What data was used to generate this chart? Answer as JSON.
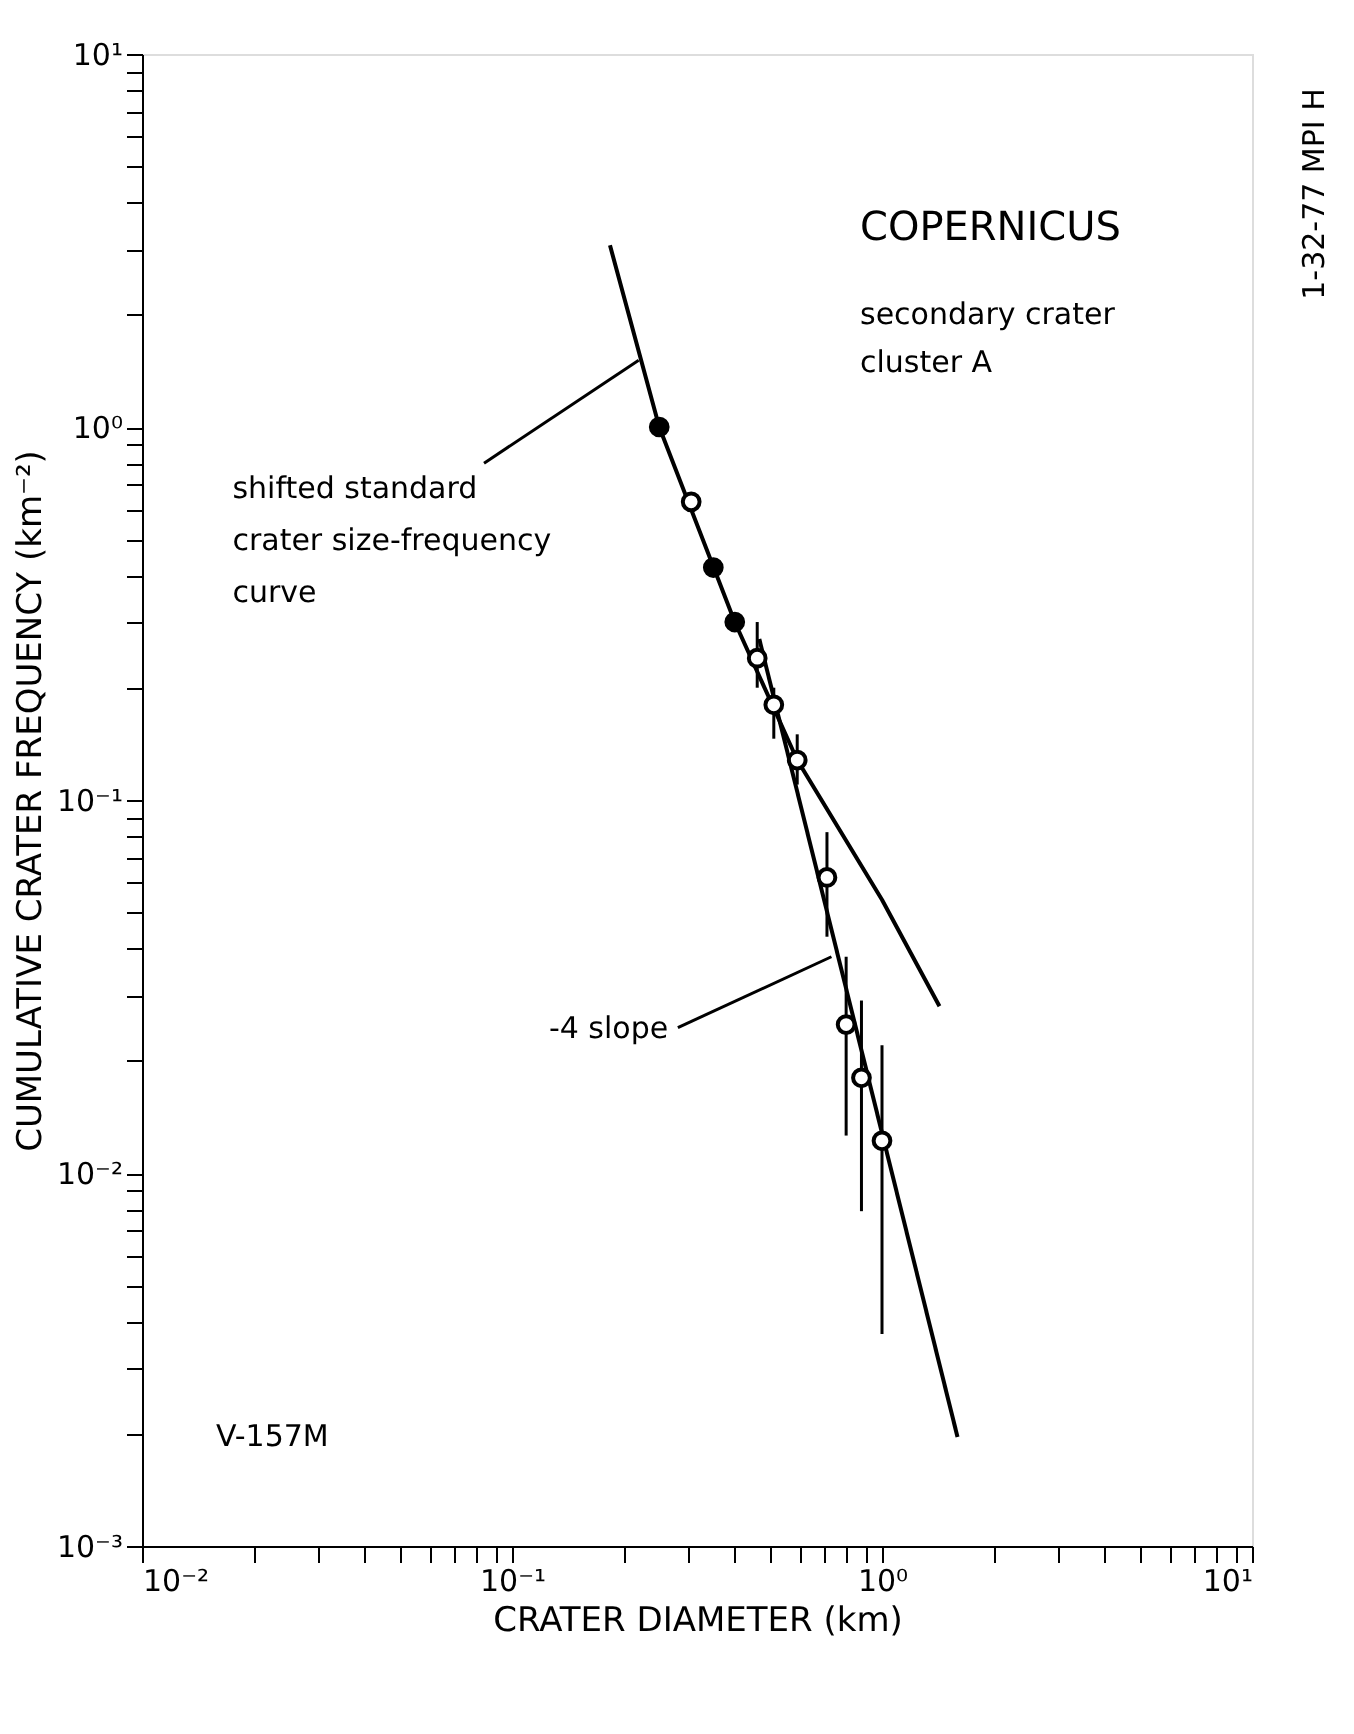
{
  "chart_data": {
    "type": "scatter",
    "xlabel": "CRATER DIAMETER (km)",
    "ylabel": "CUMULATIVE CRATER FREQUENCY (km⁻²)",
    "log": "xy",
    "xlim": [
      0.01,
      10
    ],
    "ylim": [
      0.001,
      10
    ],
    "xticks": [
      {
        "value": 0.01,
        "label": "10⁻²"
      },
      {
        "value": 0.02,
        "label": null
      },
      {
        "value": 0.03,
        "label": null
      },
      {
        "value": 0.04,
        "label": null
      },
      {
        "value": 0.05,
        "label": null
      },
      {
        "value": 0.06,
        "label": null
      },
      {
        "value": 0.07,
        "label": null
      },
      {
        "value": 0.08,
        "label": null
      },
      {
        "value": 0.09,
        "label": null
      },
      {
        "value": 0.1,
        "label": "10⁻¹"
      },
      {
        "value": 0.2,
        "label": null
      },
      {
        "value": 0.3,
        "label": null
      },
      {
        "value": 0.4,
        "label": null
      },
      {
        "value": 0.5,
        "label": null
      },
      {
        "value": 0.6,
        "label": null
      },
      {
        "value": 0.7,
        "label": null
      },
      {
        "value": 0.8,
        "label": null
      },
      {
        "value": 0.9,
        "label": null
      },
      {
        "value": 1,
        "label": "10⁰"
      },
      {
        "value": 2,
        "label": null
      },
      {
        "value": 3,
        "label": null
      },
      {
        "value": 4,
        "label": null
      },
      {
        "value": 5,
        "label": null
      },
      {
        "value": 6,
        "label": null
      },
      {
        "value": 7,
        "label": null
      },
      {
        "value": 8,
        "label": null
      },
      {
        "value": 9,
        "label": null
      },
      {
        "value": 10,
        "label": "10¹"
      }
    ],
    "yticks": [
      {
        "value": 0.001,
        "label": "10⁻³"
      },
      {
        "value": 0.002,
        "label": null
      },
      {
        "value": 0.003,
        "label": null
      },
      {
        "value": 0.004,
        "label": null
      },
      {
        "value": 0.005,
        "label": null
      },
      {
        "value": 0.006,
        "label": null
      },
      {
        "value": 0.007,
        "label": null
      },
      {
        "value": 0.008,
        "label": null
      },
      {
        "value": 0.009,
        "label": null
      },
      {
        "value": 0.01,
        "label": "10⁻²"
      },
      {
        "value": 0.02,
        "label": null
      },
      {
        "value": 0.03,
        "label": null
      },
      {
        "value": 0.04,
        "label": null
      },
      {
        "value": 0.05,
        "label": null
      },
      {
        "value": 0.06,
        "label": null
      },
      {
        "value": 0.07,
        "label": null
      },
      {
        "value": 0.08,
        "label": null
      },
      {
        "value": 0.09,
        "label": null
      },
      {
        "value": 0.1,
        "label": "10⁻¹"
      },
      {
        "value": 0.2,
        "label": null
      },
      {
        "value": 0.3,
        "label": null
      },
      {
        "value": 0.4,
        "label": null
      },
      {
        "value": 0.5,
        "label": null
      },
      {
        "value": 0.6,
        "label": null
      },
      {
        "value": 0.7,
        "label": null
      },
      {
        "value": 0.8,
        "label": null
      },
      {
        "value": 0.9,
        "label": null
      },
      {
        "value": 1,
        "label": "10⁰"
      },
      {
        "value": 2,
        "label": null
      },
      {
        "value": 3,
        "label": null
      },
      {
        "value": 4,
        "label": null
      },
      {
        "value": 5,
        "label": null
      },
      {
        "value": 6,
        "label": null
      },
      {
        "value": 7,
        "label": null
      },
      {
        "value": 8,
        "label": null
      },
      {
        "value": 9,
        "label": null
      },
      {
        "value": 10,
        "label": "10¹"
      }
    ],
    "grid": false,
    "marker": "circle",
    "series": [
      {
        "type": "line",
        "line_style": "solid",
        "marker": "none",
        "color": "#000000",
        "x": [
          0.184,
          0.25,
          0.4,
          0.59,
          1.0,
          1.43
        ],
        "values": [
          3.07,
          1.0,
          0.3,
          0.128,
          0.054,
          0.028
        ]
      },
      {
        "type": "line",
        "line_style": "solid",
        "marker": "none",
        "color": "#000000",
        "x": [
          0.466,
          1.6
        ],
        "values": [
          0.27,
          0.00196
        ]
      },
      {
        "color": "#000000",
        "x": [
          0.25,
          0.35,
          0.4
        ],
        "values": [
          1.0,
          0.42,
          0.3
        ]
      },
      {
        "color": "#ffffff",
        "x": [
          0.305,
          0.46,
          0.51,
          0.59,
          0.71,
          0.8,
          0.88,
          1.0
        ],
        "values": [
          0.63,
          0.24,
          0.18,
          0.128,
          0.062,
          0.025,
          0.018,
          0.0122
        ],
        "errors": [
          null,
          [
            0.2,
            0.3
          ],
          [
            0.146,
            0.2
          ],
          [
            0.11,
            0.15
          ],
          [
            0.043,
            0.082
          ],
          [
            0.0126,
            0.038
          ],
          [
            0.0079,
            0.029
          ],
          [
            0.0037,
            0.022
          ]
        ]
      }
    ],
    "annotations": [
      {
        "text": "shifted standard\ncrater size-frequency\ncurve",
        "x": 0.22,
        "y": 1.51
      },
      {
        "text": "-4 slope",
        "x": 0.73,
        "y": 0.038
      },
      "COPERNICUS",
      "secondary crater\ncluster A",
      "V-157M",
      "1-32-77 MPI H"
    ]
  }
}
